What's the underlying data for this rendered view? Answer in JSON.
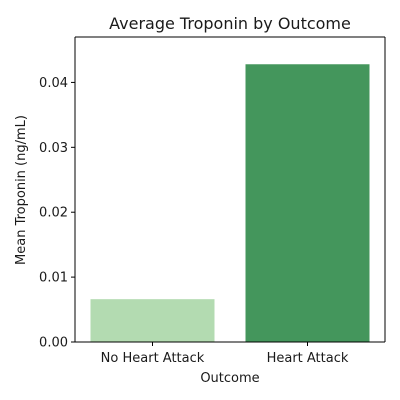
{
  "chart_data": {
    "type": "bar",
    "title": "Average Troponin by Outcome",
    "xlabel": "Outcome",
    "ylabel": "Mean Troponin (ng/mL)",
    "categories": [
      "No Heart Attack",
      "Heart Attack"
    ],
    "values": [
      0.0066,
      0.0428
    ],
    "colors": [
      "#b3dbb1",
      "#44965c"
    ],
    "ylim": [
      0,
      0.047
    ],
    "yticks": [
      0.0,
      0.01,
      0.02,
      0.03,
      0.04
    ],
    "ytick_labels": [
      "0.00",
      "0.01",
      "0.02",
      "0.03",
      "0.04"
    ],
    "grid": false,
    "legend": "none"
  }
}
